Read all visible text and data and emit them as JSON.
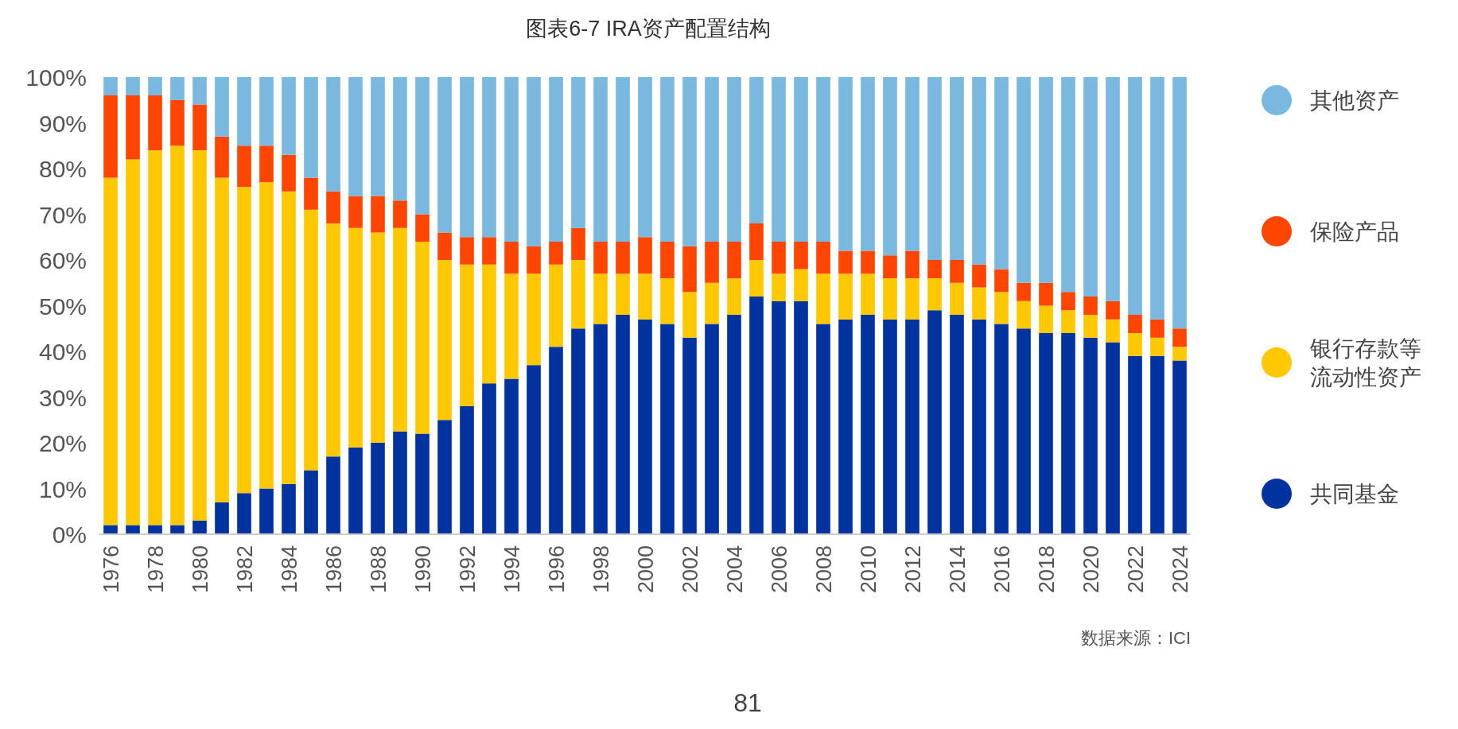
{
  "chart_data": {
    "type": "bar",
    "stacked": true,
    "title": "图表6-7 IRA资产配置结构",
    "categories": [
      "1976",
      null,
      "1978",
      null,
      "1980",
      null,
      "1982",
      null,
      "1984",
      null,
      "1986",
      null,
      "1988",
      null,
      "1990",
      null,
      "1992",
      null,
      "1994",
      null,
      "1996",
      null,
      "1998",
      null,
      "2000",
      null,
      "2002",
      null,
      "2004",
      null,
      "2006",
      null,
      "2008",
      null,
      "2010",
      null,
      "2012",
      null,
      "2014",
      null,
      "2016",
      null,
      "2018",
      null,
      "2020",
      null,
      "2022",
      null,
      "2024"
    ],
    "series": [
      {
        "name": "共同基金",
        "color": "#0033a0",
        "values": [
          2,
          2,
          2,
          2,
          3,
          7,
          9,
          10,
          11,
          14,
          17,
          19,
          20,
          22.5,
          22,
          25,
          28,
          33,
          34,
          37,
          41,
          45,
          46,
          48,
          47,
          46,
          43,
          46,
          48,
          52,
          51,
          51,
          46,
          47,
          48,
          47,
          47,
          49,
          48,
          47,
          46,
          45,
          44,
          44,
          43,
          42,
          39,
          39,
          38
        ]
      },
      {
        "name": "银行存款等流动性资产",
        "color": "#ffc800",
        "values": [
          76,
          80,
          82,
          83,
          81,
          71,
          67,
          67,
          64,
          57,
          51,
          48,
          46,
          44.5,
          42,
          35,
          31,
          26,
          23,
          20,
          18,
          15,
          11,
          9,
          10,
          10,
          10,
          9,
          8,
          8,
          6,
          7,
          11,
          10,
          9,
          9,
          9,
          7,
          7,
          7,
          7,
          6,
          6,
          5,
          5,
          5,
          5,
          4,
          3
        ]
      },
      {
        "name": "保险产品",
        "color": "#ff4500",
        "values": [
          18,
          14,
          12,
          10,
          10,
          9,
          9,
          8,
          8,
          7,
          7,
          7,
          8,
          6,
          6,
          6,
          6,
          6,
          7,
          6,
          5,
          7,
          7,
          7,
          8,
          8,
          10,
          9,
          8,
          8,
          7,
          6,
          7,
          5,
          5,
          5,
          6,
          4,
          5,
          5,
          5,
          4,
          5,
          4,
          4,
          4,
          4,
          4,
          4
        ]
      },
      {
        "name": "其他资产",
        "color": "#7ab8e0",
        "values": [
          4,
          4,
          4,
          5,
          6,
          13,
          15,
          15,
          17,
          22,
          25,
          26,
          26,
          27,
          30,
          34,
          35,
          35,
          36,
          37,
          36,
          33,
          36,
          36,
          35,
          36,
          37,
          36,
          36,
          32,
          36,
          36,
          36,
          38,
          38,
          39,
          38,
          40,
          40,
          41,
          42,
          45,
          45,
          47,
          48,
          49,
          52,
          53,
          55
        ]
      }
    ],
    "ylim": [
      0,
      100
    ],
    "yticks": [
      {
        "value": 0,
        "label": "0%"
      },
      {
        "value": 10,
        "label": "10%"
      },
      {
        "value": 20,
        "label": "20%"
      },
      {
        "value": 30,
        "label": "30%"
      },
      {
        "value": 40,
        "label": "40%"
      },
      {
        "value": 50,
        "label": "50%"
      },
      {
        "value": 60,
        "label": "60%"
      },
      {
        "value": 70,
        "label": "70%"
      },
      {
        "value": 80,
        "label": "80%"
      },
      {
        "value": 90,
        "label": "90%"
      },
      {
        "value": 100,
        "label": "100%"
      }
    ],
    "legend": "right",
    "grid": false,
    "annotations": [
      "数据来源：ICI",
      "81"
    ]
  }
}
